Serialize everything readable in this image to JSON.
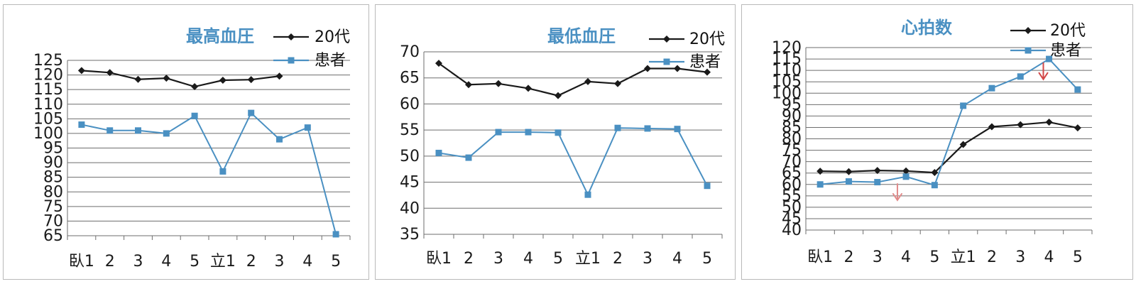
{
  "chart_data": [
    {
      "type": "line",
      "title": "最高血圧",
      "categories": [
        "臥1",
        "2",
        "3",
        "4",
        "5",
        "立1",
        "2",
        "3",
        "4",
        "5"
      ],
      "y_ticks": [
        "125",
        "120",
        "115",
        "110",
        "105",
        "100",
        "95",
        "90",
        "85",
        "80",
        "75",
        "70",
        "65"
      ],
      "ylim": [
        65,
        125
      ],
      "legend_position": "top-right",
      "grid": true,
      "series": [
        {
          "name": "20代",
          "color": "#1a1a1a",
          "marker": "diamond",
          "values": [
            121.5,
            120.8,
            118.5,
            118.9,
            116.0,
            118.2,
            118.4,
            119.6,
            null,
            null
          ]
        },
        {
          "name": "患者",
          "color": "#4a90c2",
          "marker": "square",
          "values": [
            103,
            101,
            101,
            100,
            106,
            87,
            107,
            98,
            102,
            65.5
          ]
        }
      ]
    },
    {
      "type": "line",
      "title": "最低血圧",
      "categories": [
        "臥1",
        "2",
        "3",
        "4",
        "5",
        "立1",
        "2",
        "3",
        "4",
        "5"
      ],
      "y_ticks": [
        "70",
        "65",
        "60",
        "55",
        "50",
        "45",
        "40",
        "35"
      ],
      "ylim": [
        35,
        70
      ],
      "legend_position": "top-right",
      "grid": true,
      "series": [
        {
          "name": "20代",
          "color": "#1a1a1a",
          "marker": "diamond",
          "values": [
            67.8,
            63.7,
            63.9,
            63.0,
            61.6,
            64.3,
            63.9,
            66.8,
            66.8,
            66.1
          ]
        },
        {
          "name": "患者",
          "color": "#4a90c2",
          "marker": "square",
          "values": [
            50.6,
            49.7,
            54.6,
            54.6,
            54.5,
            42.6,
            55.4,
            55.3,
            55.2,
            44.3
          ]
        }
      ]
    },
    {
      "type": "line",
      "title": "心拍数",
      "categories": [
        "臥1",
        "2",
        "3",
        "4",
        "5",
        "立1",
        "2",
        "3",
        "4",
        "5"
      ],
      "y_ticks": [
        "120",
        "115",
        "110",
        "105",
        "100",
        "95",
        "90",
        "85",
        "80",
        "75",
        "70",
        "65",
        "60",
        "55",
        "50",
        "45",
        "40"
      ],
      "ylim": [
        40,
        120
      ],
      "legend_position": "top-right",
      "grid": true,
      "series": [
        {
          "name": "20代",
          "color": "#1a1a1a",
          "marker": "diamond",
          "values": [
            65.8,
            65.6,
            66.1,
            65.9,
            65.2,
            77.5,
            85.3,
            86.2,
            87.3,
            84.8
          ]
        },
        {
          "name": "患者",
          "color": "#4a90c2",
          "marker": "square",
          "values": [
            60.0,
            61.3,
            61.0,
            63.4,
            59.7,
            94.5,
            102.2,
            107.3,
            115.0,
            101.6
          ]
        }
      ],
      "annotations": [
        {
          "type": "arrow-down",
          "color": "#e08a8a",
          "at_category": 2.7,
          "at_value": 56.5
        },
        {
          "type": "arrow-down",
          "color": "#d24848",
          "at_category": 7.8,
          "at_value": 109.5
        }
      ]
    }
  ],
  "colors": {
    "title": "#4a90c2",
    "axis": "#6e6e6e",
    "grid": "#6e6e6e"
  }
}
